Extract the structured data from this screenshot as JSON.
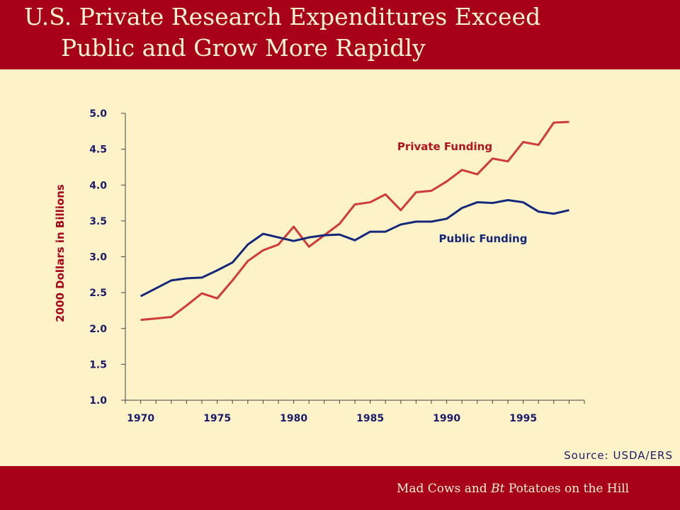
{
  "slide": {
    "title_line1": "U.S. Private Research Expenditures Exceed",
    "title_line2": "Public and Grow More Rapidly",
    "footer_prefix": "Mad Cows and ",
    "footer_italic": "Bt",
    "footer_suffix": " Potatoes on the Hill",
    "source": "Source:  USDA/ERS",
    "colors": {
      "banner": "#A80018",
      "background": "#FDF2C8"
    }
  },
  "chart_data": {
    "type": "line",
    "title": "",
    "xlabel": "",
    "ylabel": "2000 Dollars in Billions",
    "xlim": [
      1969,
      1999
    ],
    "ylim": [
      1.0,
      5.0
    ],
    "x_ticks": [
      1970,
      1975,
      1980,
      1985,
      1990,
      1995
    ],
    "y_ticks": [
      "1.0",
      "1.5",
      "2.0",
      "2.5",
      "3.0",
      "3.5",
      "4.0",
      "4.5",
      "5.0"
    ],
    "grid": false,
    "x": [
      1970,
      1971,
      1972,
      1973,
      1974,
      1975,
      1976,
      1977,
      1978,
      1979,
      1980,
      1981,
      1982,
      1983,
      1984,
      1985,
      1986,
      1987,
      1988,
      1989,
      1990,
      1991,
      1992,
      1993,
      1994,
      1995,
      1996,
      1997,
      1998
    ],
    "series": [
      {
        "name": "Private Funding",
        "color": "#D03A3A",
        "values": [
          2.12,
          2.14,
          2.16,
          2.32,
          2.49,
          2.42,
          2.67,
          2.94,
          3.09,
          3.17,
          3.42,
          3.14,
          3.3,
          3.46,
          3.73,
          3.76,
          3.87,
          3.65,
          3.9,
          3.92,
          4.05,
          4.21,
          4.15,
          4.37,
          4.33,
          4.6,
          4.56,
          4.87,
          4.88
        ]
      },
      {
        "name": "Public Funding",
        "color": "#14287A",
        "values": [
          2.45,
          2.56,
          2.67,
          2.7,
          2.71,
          2.81,
          2.92,
          3.17,
          3.32,
          3.27,
          3.22,
          3.27,
          3.3,
          3.31,
          3.23,
          3.35,
          3.35,
          3.45,
          3.49,
          3.49,
          3.53,
          3.68,
          3.76,
          3.75,
          3.79,
          3.76,
          3.63,
          3.6,
          3.65
        ]
      }
    ]
  }
}
